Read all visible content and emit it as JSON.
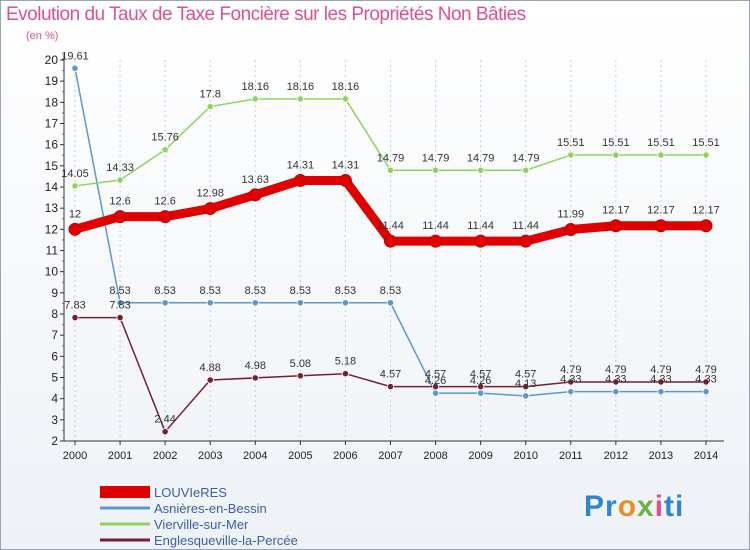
{
  "chart_data": {
    "type": "line",
    "title": "Evolution du Taux de Taxe Foncière sur les Propriétés Non Bâties",
    "unit_label": "(en %)",
    "x": [
      "2000",
      "2001",
      "2002",
      "2003",
      "2004",
      "2005",
      "2006",
      "2007",
      "2008",
      "2009",
      "2010",
      "2011",
      "2012",
      "2013",
      "2014"
    ],
    "ylim": [
      2,
      20
    ],
    "yticks": [
      "2",
      "3",
      "4",
      "5",
      "6",
      "7",
      "8",
      "9",
      "10",
      "11",
      "12",
      "13",
      "14",
      "15",
      "16",
      "17",
      "18",
      "19",
      "20"
    ],
    "grid": "vertical",
    "series": [
      {
        "name": "LOUVIeRES",
        "color": "#e00000",
        "values": [
          12,
          12.6,
          12.6,
          12.98,
          13.63,
          14.31,
          14.31,
          11.44,
          11.44,
          11.44,
          11.44,
          11.99,
          12.17,
          12.17,
          12.17
        ],
        "labels": [
          "12",
          "12.6",
          "12.6",
          "12.98",
          "13.63",
          "14.31",
          "14.31",
          "11.44",
          "11.44",
          "11.44",
          "11.44",
          "11.99",
          "12.17",
          "12.17",
          "12.17"
        ]
      },
      {
        "name": "Asnières-en-Bessin",
        "color": "#5a98d0",
        "values": [
          19.61,
          8.53,
          8.53,
          8.53,
          8.53,
          8.53,
          8.53,
          8.53,
          4.26,
          4.26,
          4.13,
          4.33,
          4.33,
          4.33,
          4.33
        ],
        "labels": [
          "19.61",
          "8.53",
          "8.53",
          "8.53",
          "8.53",
          "8.53",
          "8.53",
          "8.53",
          "4.26",
          "4.26",
          "4.13",
          "4.33",
          "4.33",
          "4.33",
          "4.33"
        ]
      },
      {
        "name": "Vierville-sur-Mer",
        "color": "#8fd45a",
        "values": [
          14.05,
          14.33,
          15.76,
          17.8,
          18.16,
          18.16,
          18.16,
          14.79,
          14.79,
          14.79,
          14.79,
          15.51,
          15.51,
          15.51,
          15.51
        ],
        "labels": [
          "14.05",
          "14.33",
          "15.76",
          "17.8",
          "18.16",
          "18.16",
          "18.16",
          "14.79",
          "14.79",
          "14.79",
          "14.79",
          "15.51",
          "15.51",
          "15.51",
          "15.51"
        ]
      },
      {
        "name": "Englesqueville-la-Percée",
        "color": "#7a1f2e",
        "values": [
          7.83,
          7.83,
          2.44,
          4.88,
          4.98,
          5.08,
          5.18,
          4.57,
          4.57,
          4.57,
          4.57,
          4.79,
          4.79,
          4.79,
          4.79
        ],
        "labels": [
          "7.83",
          "7.83",
          "2.44",
          "4.88",
          "4.98",
          "5.08",
          "5.18",
          "4.57",
          "4.57",
          "4.57",
          "4.57",
          "4.79",
          "4.79",
          "4.79",
          "4.79"
        ]
      }
    ],
    "legend_position": "bottom-left"
  },
  "logo": {
    "text": "Proxiti"
  }
}
